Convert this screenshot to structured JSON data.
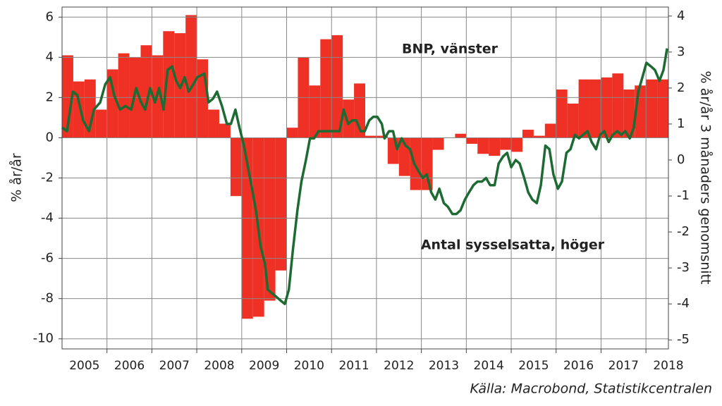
{
  "chart_data": {
    "type": "combo",
    "y_label": "% år/år",
    "y2_label": "% år/år 3 månaders genomsnitt",
    "source": "Källa: Macrobond, Statistikcentralen",
    "xlim": [
      2005,
      2018.5
    ],
    "ylim": [
      -10.5,
      6.5
    ],
    "y2lim": [
      -5.25,
      4.25
    ],
    "yticks": [
      6,
      4,
      2,
      0,
      -2,
      -4,
      -6,
      -8,
      -10
    ],
    "y2ticks": [
      4,
      3,
      2,
      1,
      0,
      -1,
      -2,
      -3,
      -4,
      -5
    ],
    "xticks": [
      {
        "value": 2005.5,
        "label": "2005"
      },
      {
        "value": 2006.5,
        "label": "2006"
      },
      {
        "value": 2007.5,
        "label": "2007"
      },
      {
        "value": 2008.5,
        "label": "2008"
      },
      {
        "value": 2009.5,
        "label": "2009"
      },
      {
        "value": 2010.5,
        "label": "2010"
      },
      {
        "value": 2011.5,
        "label": "2011"
      },
      {
        "value": 2012.5,
        "label": "2012"
      },
      {
        "value": 2013.5,
        "label": "2013"
      },
      {
        "value": 2014.5,
        "label": "2014"
      },
      {
        "value": 2015.5,
        "label": "2015"
      },
      {
        "value": 2016.5,
        "label": "2016"
      },
      {
        "value": 2017.5,
        "label": "2017"
      },
      {
        "value": 2018.5,
        "label": "2018"
      }
    ],
    "xgrid": [
      2006,
      2007,
      2008,
      2009,
      2010,
      2011,
      2012,
      2013,
      2014,
      2015,
      2016,
      2017,
      2018
    ],
    "grid": true,
    "series": [
      {
        "name": "BNP, vänster",
        "type": "bar",
        "color": "#ee3124",
        "x": [
          2005,
          2005.25,
          2005.5,
          2005.75,
          2006,
          2006.25,
          2006.5,
          2006.75,
          2007,
          2007.25,
          2007.5,
          2007.75,
          2008,
          2008.25,
          2008.5,
          2008.75,
          2009,
          2009.25,
          2009.5,
          2009.75,
          2010,
          2010.25,
          2010.5,
          2010.75,
          2011,
          2011.25,
          2011.5,
          2011.75,
          2012,
          2012.25,
          2012.5,
          2012.75,
          2013,
          2013.25,
          2013.5,
          2013.75,
          2014,
          2014.25,
          2014.5,
          2014.75,
          2015,
          2015.25,
          2015.5,
          2015.75,
          2016,
          2016.25,
          2016.5,
          2016.75,
          2017,
          2017.25,
          2017.5,
          2017.75,
          2018,
          2018.25
        ],
        "values": [
          4.1,
          2.8,
          2.9,
          1.4,
          3.4,
          4.2,
          4.0,
          4.6,
          4.1,
          5.3,
          5.2,
          6.1,
          3.9,
          1.4,
          0.7,
          -2.9,
          -9.0,
          -8.9,
          -8.1,
          -6.6,
          0.5,
          4.0,
          2.6,
          4.9,
          5.1,
          1.9,
          2.7,
          0.1,
          0.1,
          -1.3,
          -1.9,
          -2.6,
          -2.6,
          -0.6,
          0,
          0.2,
          -0.3,
          -0.8,
          -0.9,
          -0.6,
          -0.7,
          0.4,
          0.1,
          0.7,
          2.4,
          1.7,
          2.9,
          2.9,
          3.0,
          3.2,
          2.4,
          2.6,
          2.9,
          2.9
        ]
      },
      {
        "name": "Antal sysselsatta, höger",
        "type": "line",
        "axis": "y2",
        "color": "#1d6a33",
        "x": [
          2005.0,
          2005.11,
          2005.24,
          2005.34,
          2005.47,
          2005.6,
          2005.71,
          2005.85,
          2005.96,
          2006.07,
          2006.16,
          2006.29,
          2006.41,
          2006.54,
          2006.65,
          2006.76,
          2006.85,
          2006.96,
          2007.07,
          2007.16,
          2007.26,
          2007.35,
          2007.45,
          2007.54,
          2007.63,
          2007.73,
          2007.82,
          2007.92,
          2008.01,
          2008.17,
          2008.26,
          2008.36,
          2008.45,
          2008.56,
          2008.67,
          2008.76,
          2008.86,
          2008.95,
          2009.05,
          2009.14,
          2009.23,
          2009.33,
          2009.42,
          2009.52,
          2009.58,
          2009.67,
          2009.77,
          2009.86,
          2009.96,
          2010.05,
          2010.14,
          2010.24,
          2010.33,
          2010.43,
          2010.52,
          2010.61,
          2010.71,
          2010.8,
          2010.9,
          2010.99,
          2011.08,
          2011.18,
          2011.27,
          2011.37,
          2011.46,
          2011.55,
          2011.65,
          2011.74,
          2011.84,
          2011.93,
          2012.02,
          2012.12,
          2012.18,
          2012.28,
          2012.37,
          2012.46,
          2012.56,
          2012.65,
          2012.75,
          2012.84,
          2012.93,
          2013.03,
          2013.12,
          2013.22,
          2013.31,
          2013.4,
          2013.5,
          2013.59,
          2013.69,
          2013.78,
          2013.87,
          2013.97,
          2014.06,
          2014.16,
          2014.25,
          2014.35,
          2014.44,
          2014.53,
          2014.63,
          2014.72,
          2014.82,
          2014.91,
          2015.0,
          2015.1,
          2015.19,
          2015.29,
          2015.38,
          2015.47,
          2015.57,
          2015.66,
          2015.76,
          2015.85,
          2015.94,
          2016.04,
          2016.13,
          2016.23,
          2016.32,
          2016.42,
          2016.51,
          2016.6,
          2016.7,
          2016.79,
          2016.89,
          2016.98,
          2017.07,
          2017.17,
          2017.26,
          2017.36,
          2017.45,
          2017.54,
          2017.64,
          2017.73,
          2017.83,
          2017.92,
          2018.01,
          2018.11,
          2018.2,
          2018.3,
          2018.39,
          2018.47
        ],
        "values": [
          0.9,
          0.8,
          1.9,
          1.8,
          1.1,
          0.8,
          1.4,
          1.6,
          2.1,
          2.3,
          1.8,
          1.4,
          1.5,
          1.4,
          2.0,
          1.6,
          1.4,
          2.0,
          1.6,
          2.0,
          1.4,
          2.5,
          2.6,
          2.2,
          2.0,
          2.3,
          1.9,
          2.1,
          2.3,
          2.4,
          1.6,
          1.7,
          1.9,
          1.5,
          1.0,
          1.0,
          1.4,
          0.9,
          0.4,
          -0.2,
          -0.8,
          -1.5,
          -2.4,
          -2.9,
          -3.6,
          -3.7,
          -3.8,
          -3.9,
          -4.0,
          -3.6,
          -2.5,
          -1.4,
          -0.6,
          0.0,
          0.6,
          0.6,
          0.8,
          0.8,
          0.8,
          0.8,
          0.8,
          0.8,
          1.4,
          1.0,
          1.1,
          1.1,
          0.8,
          0.8,
          1.1,
          1.2,
          1.2,
          1.0,
          0.6,
          0.8,
          0.8,
          0.3,
          0.6,
          0.4,
          0.3,
          -0.1,
          -0.3,
          -0.5,
          -0.4,
          -0.9,
          -1.1,
          -0.8,
          -1.2,
          -1.3,
          -1.5,
          -1.5,
          -1.4,
          -1.1,
          -0.9,
          -0.7,
          -0.6,
          -0.6,
          -0.5,
          -0.7,
          -0.7,
          -0.1,
          0.1,
          0.2,
          -0.2,
          0.0,
          -0.1,
          -0.5,
          -0.9,
          -1.1,
          -1.2,
          -0.7,
          0.4,
          0.3,
          -0.4,
          -0.8,
          -0.6,
          0.2,
          0.3,
          0.7,
          0.6,
          0.7,
          0.8,
          0.5,
          0.3,
          0.7,
          0.8,
          0.5,
          0.7,
          0.8,
          0.7,
          0.8,
          0.6,
          0.9,
          1.9,
          2.3,
          2.7,
          2.6,
          2.5,
          2.2,
          2.5,
          3.1
        ]
      }
    ]
  }
}
